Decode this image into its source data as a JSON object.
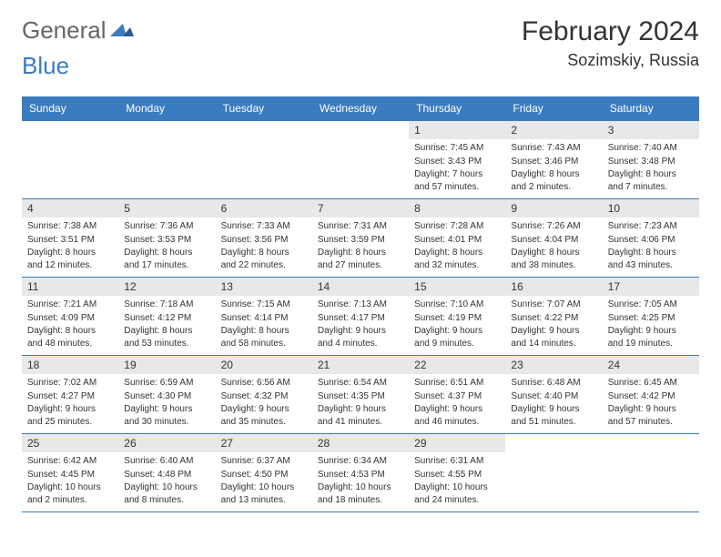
{
  "logo": {
    "part1": "General",
    "part2": "Blue"
  },
  "title": {
    "month": "February 2024",
    "location": "Sozimskiy, Russia"
  },
  "colors": {
    "header_bg": "#3b7bbf",
    "header_text": "#ffffff",
    "daynum_bg": "#e8e8e8",
    "text": "#333333",
    "border": "#3b7bbf"
  },
  "day_headers": [
    "Sunday",
    "Monday",
    "Tuesday",
    "Wednesday",
    "Thursday",
    "Friday",
    "Saturday"
  ],
  "weeks": [
    [
      null,
      null,
      null,
      null,
      {
        "n": "1",
        "sunrise": "7:45 AM",
        "sunset": "3:43 PM",
        "daylight": "7 hours and 57 minutes."
      },
      {
        "n": "2",
        "sunrise": "7:43 AM",
        "sunset": "3:46 PM",
        "daylight": "8 hours and 2 minutes."
      },
      {
        "n": "3",
        "sunrise": "7:40 AM",
        "sunset": "3:48 PM",
        "daylight": "8 hours and 7 minutes."
      }
    ],
    [
      {
        "n": "4",
        "sunrise": "7:38 AM",
        "sunset": "3:51 PM",
        "daylight": "8 hours and 12 minutes."
      },
      {
        "n": "5",
        "sunrise": "7:36 AM",
        "sunset": "3:53 PM",
        "daylight": "8 hours and 17 minutes."
      },
      {
        "n": "6",
        "sunrise": "7:33 AM",
        "sunset": "3:56 PM",
        "daylight": "8 hours and 22 minutes."
      },
      {
        "n": "7",
        "sunrise": "7:31 AM",
        "sunset": "3:59 PM",
        "daylight": "8 hours and 27 minutes."
      },
      {
        "n": "8",
        "sunrise": "7:28 AM",
        "sunset": "4:01 PM",
        "daylight": "8 hours and 32 minutes."
      },
      {
        "n": "9",
        "sunrise": "7:26 AM",
        "sunset": "4:04 PM",
        "daylight": "8 hours and 38 minutes."
      },
      {
        "n": "10",
        "sunrise": "7:23 AM",
        "sunset": "4:06 PM",
        "daylight": "8 hours and 43 minutes."
      }
    ],
    [
      {
        "n": "11",
        "sunrise": "7:21 AM",
        "sunset": "4:09 PM",
        "daylight": "8 hours and 48 minutes."
      },
      {
        "n": "12",
        "sunrise": "7:18 AM",
        "sunset": "4:12 PM",
        "daylight": "8 hours and 53 minutes."
      },
      {
        "n": "13",
        "sunrise": "7:15 AM",
        "sunset": "4:14 PM",
        "daylight": "8 hours and 58 minutes."
      },
      {
        "n": "14",
        "sunrise": "7:13 AM",
        "sunset": "4:17 PM",
        "daylight": "9 hours and 4 minutes."
      },
      {
        "n": "15",
        "sunrise": "7:10 AM",
        "sunset": "4:19 PM",
        "daylight": "9 hours and 9 minutes."
      },
      {
        "n": "16",
        "sunrise": "7:07 AM",
        "sunset": "4:22 PM",
        "daylight": "9 hours and 14 minutes."
      },
      {
        "n": "17",
        "sunrise": "7:05 AM",
        "sunset": "4:25 PM",
        "daylight": "9 hours and 19 minutes."
      }
    ],
    [
      {
        "n": "18",
        "sunrise": "7:02 AM",
        "sunset": "4:27 PM",
        "daylight": "9 hours and 25 minutes."
      },
      {
        "n": "19",
        "sunrise": "6:59 AM",
        "sunset": "4:30 PM",
        "daylight": "9 hours and 30 minutes."
      },
      {
        "n": "20",
        "sunrise": "6:56 AM",
        "sunset": "4:32 PM",
        "daylight": "9 hours and 35 minutes."
      },
      {
        "n": "21",
        "sunrise": "6:54 AM",
        "sunset": "4:35 PM",
        "daylight": "9 hours and 41 minutes."
      },
      {
        "n": "22",
        "sunrise": "6:51 AM",
        "sunset": "4:37 PM",
        "daylight": "9 hours and 46 minutes."
      },
      {
        "n": "23",
        "sunrise": "6:48 AM",
        "sunset": "4:40 PM",
        "daylight": "9 hours and 51 minutes."
      },
      {
        "n": "24",
        "sunrise": "6:45 AM",
        "sunset": "4:42 PM",
        "daylight": "9 hours and 57 minutes."
      }
    ],
    [
      {
        "n": "25",
        "sunrise": "6:42 AM",
        "sunset": "4:45 PM",
        "daylight": "10 hours and 2 minutes."
      },
      {
        "n": "26",
        "sunrise": "6:40 AM",
        "sunset": "4:48 PM",
        "daylight": "10 hours and 8 minutes."
      },
      {
        "n": "27",
        "sunrise": "6:37 AM",
        "sunset": "4:50 PM",
        "daylight": "10 hours and 13 minutes."
      },
      {
        "n": "28",
        "sunrise": "6:34 AM",
        "sunset": "4:53 PM",
        "daylight": "10 hours and 18 minutes."
      },
      {
        "n": "29",
        "sunrise": "6:31 AM",
        "sunset": "4:55 PM",
        "daylight": "10 hours and 24 minutes."
      },
      null,
      null
    ]
  ],
  "labels": {
    "sunrise": "Sunrise:",
    "sunset": "Sunset:",
    "daylight": "Daylight:"
  }
}
